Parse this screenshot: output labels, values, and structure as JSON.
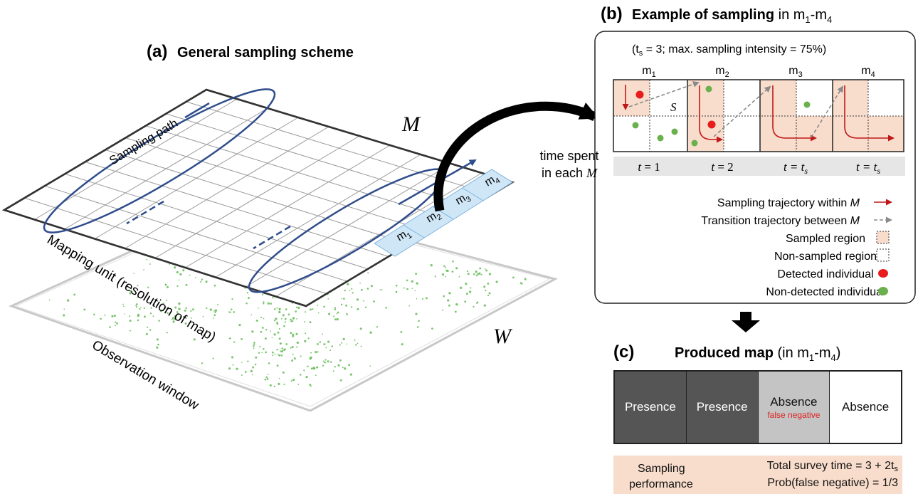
{
  "panel_a": {
    "label": "(a)",
    "title": "General sampling scheme",
    "M_symbol": "M",
    "W_symbol": "W",
    "sampling_path": "Sampling path",
    "mapping_unit": "Mapping unit (resolution of map)",
    "observation_window": "Observation window",
    "cells": [
      "m",
      "m",
      "m",
      "m"
    ],
    "cell_subs": [
      "1",
      "2",
      "3",
      "4"
    ]
  },
  "panel_b": {
    "label": "(b)",
    "title_bold": "Example of sampling",
    "title_rest": "in m",
    "title_sub1": "1",
    "title_dash": "-m",
    "title_sub2": "4",
    "params_pre": "(t",
    "params_sub": "s",
    "params_post": " = 3; max. sampling intensity = 75%)",
    "cells": [
      "m",
      "m",
      "m",
      "m"
    ],
    "cell_subs": [
      "1",
      "2",
      "3",
      "4"
    ],
    "s_label": "S",
    "times": [
      {
        "t": "t",
        "eq": " = 1",
        "sub": ""
      },
      {
        "t": "t",
        "eq": " = 2",
        "sub": ""
      },
      {
        "t": "t",
        "eq": " = t",
        "sub": "s"
      },
      {
        "t": "t",
        "eq": " = t",
        "sub": "s"
      }
    ],
    "time_spent_line1": "time spent",
    "time_spent_line2": "in each ",
    "time_spent_M": "M",
    "legend": [
      {
        "text": "Sampling trajectory within ",
        "italic": "M",
        "marker": "red-arrow"
      },
      {
        "text": "Transition trajectory between ",
        "italic": "M",
        "marker": "gray-dashed-arrow"
      },
      {
        "text": "Sampled region",
        "italic": "",
        "marker": "pink-box"
      },
      {
        "text": "Non-sampled region",
        "italic": "",
        "marker": "white-box"
      },
      {
        "text": "Detected individual",
        "italic": "",
        "marker": "red-dot"
      },
      {
        "text": "Non-detected individual",
        "italic": "",
        "marker": "green-dot"
      }
    ]
  },
  "panel_c": {
    "label": "(c)",
    "title_bold": "Produced map",
    "title_rest": " (in m",
    "title_sub1": "1",
    "title_dash": "-m",
    "title_sub2": "4",
    "title_end": ")",
    "cells": [
      {
        "label": "Presence",
        "note": "",
        "style": "presence"
      },
      {
        "label": "Presence",
        "note": "",
        "style": "presence"
      },
      {
        "label": "Absence",
        "note": "false negative",
        "style": "absence-false"
      },
      {
        "label": "Absence",
        "note": "",
        "style": "absence"
      }
    ],
    "performance_label_1": "Sampling",
    "performance_label_2": "performance",
    "survey_time": "Total survey time = 3 + 2t",
    "survey_time_sub": "s",
    "prob_fn": "Prob(false negative) = 1/3"
  },
  "colors": {
    "path_blue": "#2f4d8c",
    "highlight_blue": "#cfe6f7",
    "sampled_pink": "#f8ddcc",
    "detected_red": "#e81c1c",
    "non_detected_green": "#6ab04c",
    "presence_gray": "#555555",
    "absence_false_gray": "#c4c4c4"
  }
}
